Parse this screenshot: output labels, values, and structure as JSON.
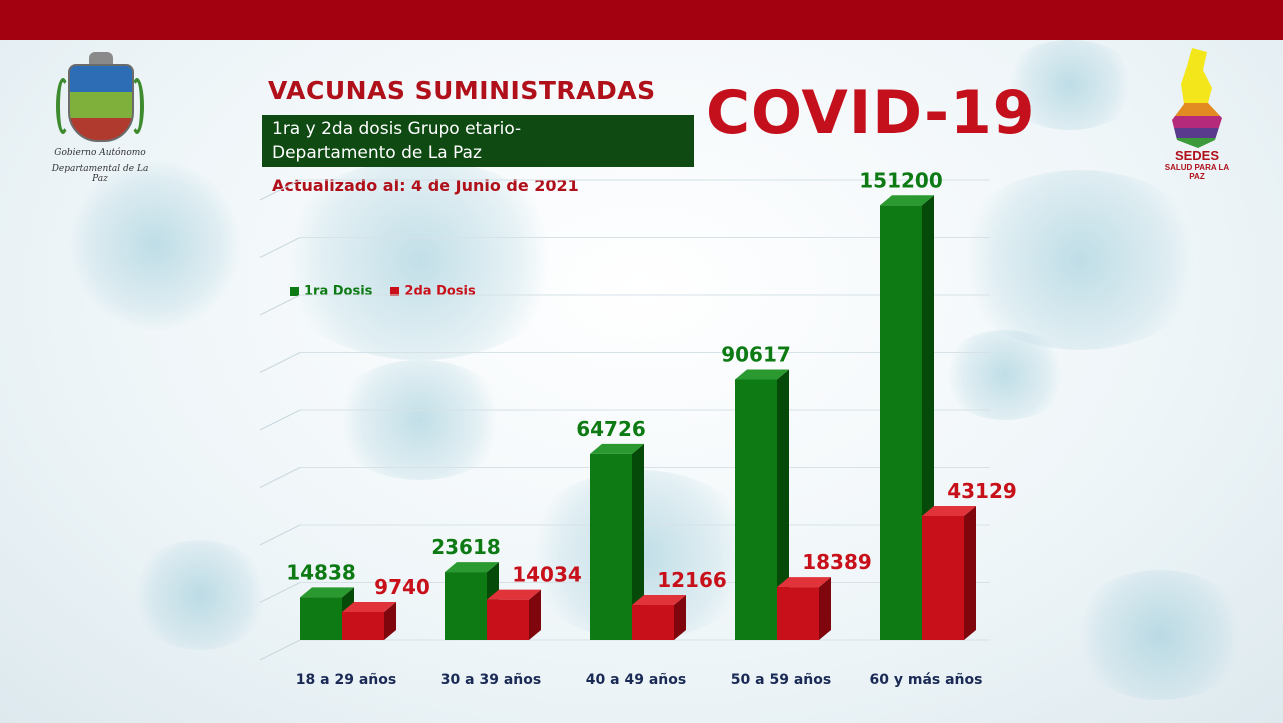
{
  "header": {
    "title": "VACUNAS SUMINISTRADAS",
    "subtitle_line1": "1ra y 2da dosis Grupo etario-",
    "subtitle_line2": "Departamento de La Paz",
    "updated": "Actualizado al: 4 de Junio de 2021",
    "covid_title": "COVID-19"
  },
  "logos": {
    "left_line1": "Gobierno Autónomo",
    "left_line2": "Departamental de La Paz",
    "right_name": "SEDES",
    "right_sub": "SALUD PARA LA PAZ"
  },
  "colors": {
    "banner": "#a30010",
    "dose1": "#0e7a14",
    "dose2": "#c8101a",
    "title_red": "#b0101a",
    "subtitle_bg": "#0f4a12"
  },
  "chart_data": {
    "type": "bar",
    "categories": [
      "18 a 29 años",
      "30 a 39 años",
      "40 a 49 años",
      "50 a 59 años",
      "60 y más años"
    ],
    "series": [
      {
        "name": "1ra Dosis",
        "values": [
          14838,
          23618,
          64726,
          90617,
          151200
        ]
      },
      {
        "name": "2da Dosis",
        "values": [
          9740,
          14034,
          12166,
          18389,
          43129
        ]
      }
    ],
    "ylim": [
      0,
      160000
    ],
    "grid": true,
    "legend": "top-left",
    "style": "3d-clustered"
  }
}
